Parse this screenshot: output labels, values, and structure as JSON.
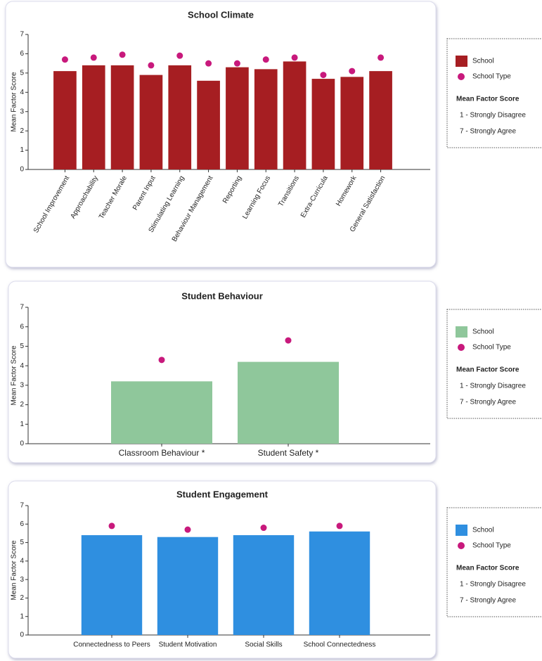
{
  "chart_data": [
    {
      "type": "bar",
      "title": "School Climate",
      "y_label": "Mean Factor Score",
      "categories": [
        "School Improvement",
        "Approachability",
        "Teacher Morale",
        "Parent Input",
        "Stimulating Learning",
        "Behaviour Management",
        "Reporting",
        "Learning Focus",
        "Transitions",
        "Extra-Curricula",
        "Homework",
        "General Satisfaction"
      ],
      "series": [
        {
          "name": "School",
          "type": "bar",
          "color": "#a61e22",
          "values": [
            5.1,
            5.4,
            5.4,
            4.9,
            5.4,
            4.6,
            5.3,
            5.2,
            5.6,
            4.7,
            4.8,
            5.1
          ]
        },
        {
          "name": "School Type",
          "type": "scatter",
          "color": "#c8197c",
          "values": [
            5.7,
            5.8,
            5.95,
            5.4,
            5.9,
            5.5,
            5.5,
            5.7,
            5.8,
            4.9,
            5.1,
            5.8
          ]
        }
      ],
      "ylim": [
        0,
        7
      ],
      "yticks": [
        0,
        1,
        2,
        3,
        4,
        5,
        6,
        7
      ],
      "legend_title": "Mean Factor Score",
      "legend_notes": [
        "1 - Strongly Disagree",
        "7 - Strongly Agree"
      ]
    },
    {
      "type": "bar",
      "title": "Student Behaviour",
      "y_label": "Mean Factor Score",
      "categories": [
        "Classroom Behaviour *",
        "Student Safety *"
      ],
      "series": [
        {
          "name": "School",
          "type": "bar",
          "color": "#8fc79b",
          "values": [
            3.2,
            4.2
          ]
        },
        {
          "name": "School Type",
          "type": "scatter",
          "color": "#c8197c",
          "values": [
            4.3,
            5.3
          ]
        }
      ],
      "ylim": [
        0,
        7
      ],
      "yticks": [
        0,
        1,
        2,
        3,
        4,
        5,
        6,
        7
      ],
      "legend_title": "Mean Factor Score",
      "legend_notes": [
        "1 - Strongly Disagree",
        "7 - Strongly Agree"
      ]
    },
    {
      "type": "bar",
      "title": "Student Engagement",
      "y_label": "Mean Factor Score",
      "categories": [
        "Connectedness to Peers",
        "Student Motivation",
        "Social Skills",
        "School Connectedness"
      ],
      "series": [
        {
          "name": "School",
          "type": "bar",
          "color": "#2f8fe0",
          "values": [
            5.4,
            5.3,
            5.4,
            5.6
          ]
        },
        {
          "name": "School Type",
          "type": "scatter",
          "color": "#c8197c",
          "values": [
            5.9,
            5.7,
            5.8,
            5.9
          ]
        }
      ],
      "ylim": [
        0,
        7
      ],
      "yticks": [
        0,
        1,
        2,
        3,
        4,
        5,
        6,
        7
      ],
      "legend_title": "Mean Factor Score",
      "legend_notes": [
        "1 - Strongly Disagree",
        "7 - Strongly Agree"
      ]
    }
  ]
}
